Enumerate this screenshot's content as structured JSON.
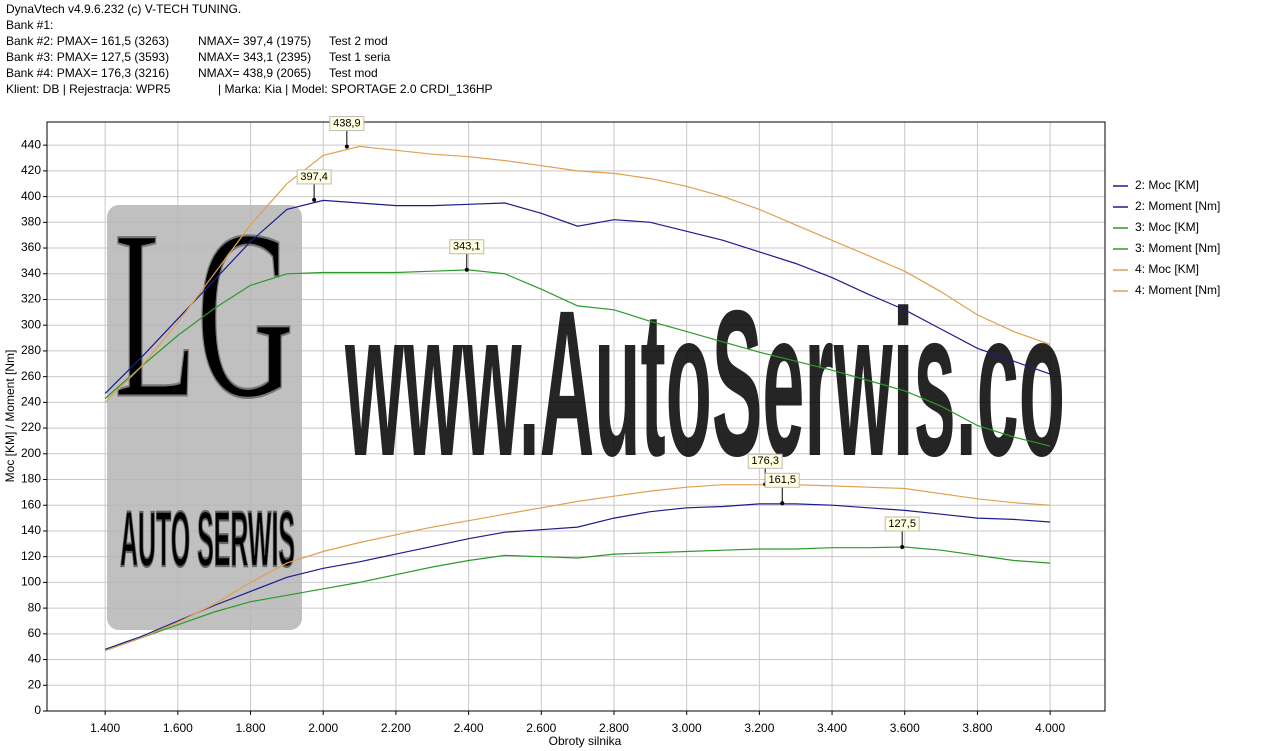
{
  "chart_data": {
    "type": "line",
    "header": [
      [
        "DynaVtech v4.9.6.232 (c) V-TECH TUNING."
      ],
      [
        "Bank #1:"
      ],
      [
        "Bank #2: PMAX= 161,5 (3263)",
        "NMAX= 397,4 (1975)",
        "Test 2 mod"
      ],
      [
        "Bank #3: PMAX= 127,5 (3593)",
        "NMAX= 343,1 (2395)",
        "Test 1 seria"
      ],
      [
        "Bank #4: PMAX= 176,3 (3216)",
        "NMAX= 438,9 (2065)",
        "Test mod"
      ],
      [
        "Klient: DB | Rejestracja: WPR5",
        "| Marka: Kia | Model: SPORTAGE 2.0 CRDI_136HP"
      ]
    ],
    "watermark": "www.AutoSerwis.co",
    "logo": [
      "LG",
      "AUTO SERWIS"
    ],
    "x_label": "Obroty silnika",
    "y_label": "Moc [KM] / Moment [Nm]",
    "xlim": [
      1240,
      4151
    ],
    "ylim": [
      0,
      458
    ],
    "xticks": [
      {
        "value": 1400,
        "label": "1.400"
      },
      {
        "value": 1600,
        "label": "1.600"
      },
      {
        "value": 1800,
        "label": "1.800"
      },
      {
        "value": 2000,
        "label": "2.000"
      },
      {
        "value": 2200,
        "label": "2.200"
      },
      {
        "value": 2400,
        "label": "2.400"
      },
      {
        "value": 2600,
        "label": "2.600"
      },
      {
        "value": 2800,
        "label": "2.800"
      },
      {
        "value": 3000,
        "label": "3.000"
      },
      {
        "value": 3200,
        "label": "3.200"
      },
      {
        "value": 3400,
        "label": "3.400"
      },
      {
        "value": 3600,
        "label": "3.600"
      },
      {
        "value": 3800,
        "label": "3.800"
      },
      {
        "value": 4000,
        "label": "4.000"
      }
    ],
    "yticks": [
      0,
      20,
      40,
      60,
      80,
      100,
      120,
      140,
      160,
      180,
      200,
      220,
      240,
      260,
      280,
      300,
      320,
      340,
      360,
      380,
      400,
      420,
      440
    ],
    "grid": true,
    "x": [
      1400,
      1500,
      1600,
      1700,
      1800,
      1900,
      2000,
      2100,
      2200,
      2300,
      2400,
      2500,
      2600,
      2700,
      2800,
      2900,
      3000,
      3100,
      3200,
      3300,
      3400,
      3500,
      3600,
      3700,
      3800,
      3900,
      4000
    ],
    "series": [
      {
        "name": "2: Moc [KM]",
        "color": "#1c1c8c",
        "values": [
          48,
          58,
          70,
          82,
          93,
          104,
          111,
          116,
          122,
          128,
          134,
          139,
          141,
          143,
          150,
          155,
          158,
          159,
          161,
          161,
          160,
          158,
          156,
          153,
          150,
          149,
          147
        ]
      },
      {
        "name": "2: Moment [Nm]",
        "color": "#1c1c8c",
        "values": [
          247,
          275,
          305,
          335,
          365,
          390,
          397,
          395,
          393,
          393,
          394,
          395,
          387,
          377,
          382,
          380,
          373,
          366,
          357,
          348,
          337,
          324,
          312,
          297,
          282,
          272,
          262
        ]
      },
      {
        "name": "3: Moc [KM]",
        "color": "#2a9a2a",
        "values": [
          47,
          57,
          67,
          77,
          85,
          90,
          95,
          100,
          106,
          112,
          117,
          121,
          120,
          119,
          122,
          123,
          124,
          125,
          126,
          126,
          127,
          127,
          127.5,
          125,
          121,
          117,
          115
        ]
      },
      {
        "name": "3: Moment [Nm]",
        "color": "#2a9a2a",
        "values": [
          243,
          268,
          292,
          313,
          331,
          340,
          341,
          341,
          341,
          342,
          343,
          340,
          328,
          315,
          312,
          303,
          295,
          287,
          279,
          272,
          265,
          257,
          249,
          237,
          222,
          213,
          206
        ]
      },
      {
        "name": "4: Moc [KM]",
        "color": "#e0a050",
        "values": [
          47,
          57,
          69,
          83,
          100,
          115,
          124,
          131,
          137,
          143,
          148,
          153,
          158,
          163,
          167,
          171,
          174,
          176,
          176,
          176,
          175,
          174,
          173,
          169,
          165,
          162,
          160
        ]
      },
      {
        "name": "4: Moment [Nm]",
        "color": "#e0a050",
        "values": [
          240,
          268,
          302,
          340,
          378,
          410,
          432,
          439,
          436,
          433,
          431,
          428,
          424,
          420,
          418,
          414,
          408,
          400,
          390,
          378,
          366,
          354,
          342,
          326,
          308,
          295,
          285
        ]
      }
    ],
    "annotations": [
      {
        "x": 2065,
        "y": 438.9,
        "label": "438,9"
      },
      {
        "x": 1975,
        "y": 397.4,
        "label": "397,4"
      },
      {
        "x": 2395,
        "y": 343.1,
        "label": "343,1"
      },
      {
        "x": 3216,
        "y": 176.3,
        "label": "176,3"
      },
      {
        "x": 3263,
        "y": 161.5,
        "label": "161,5"
      },
      {
        "x": 3593,
        "y": 127.5,
        "label": "127,5"
      }
    ]
  }
}
